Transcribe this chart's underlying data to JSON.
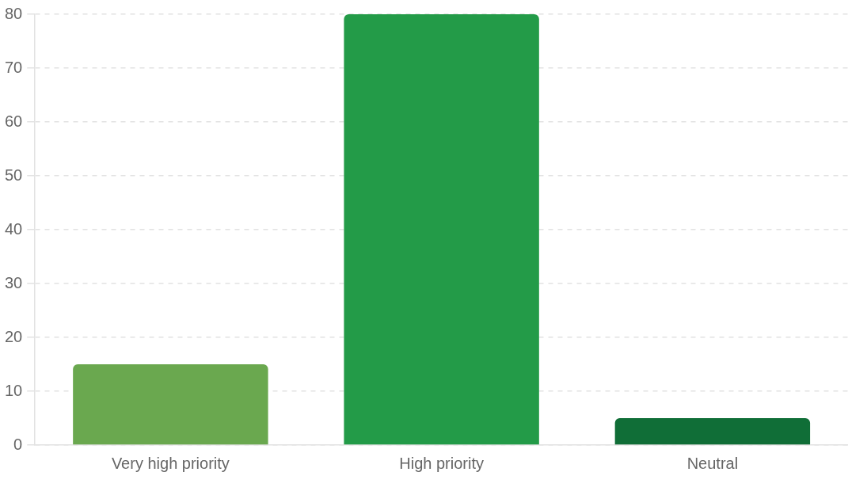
{
  "chart_data": {
    "type": "bar",
    "categories": [
      "Very high priority",
      "High priority",
      "Neutral"
    ],
    "values": [
      15,
      80,
      5
    ],
    "colors": [
      "#6aa84f",
      "#239b48",
      "#106e37"
    ],
    "ylim": [
      0,
      80
    ],
    "yticks": [
      0,
      10,
      20,
      30,
      40,
      50,
      60,
      70,
      80
    ],
    "grid": "y",
    "legend": false
  }
}
